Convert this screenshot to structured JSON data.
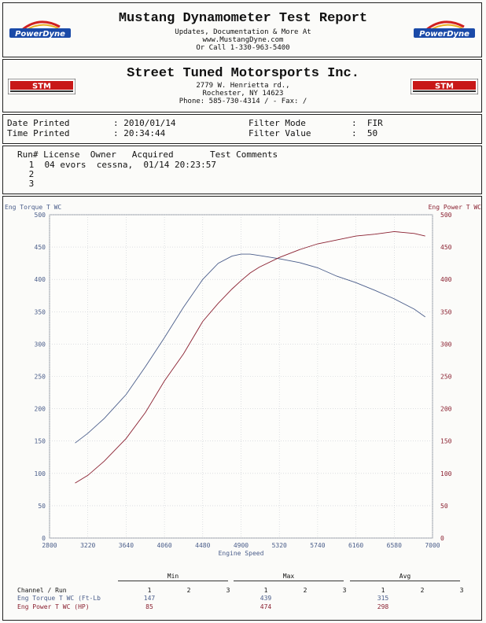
{
  "header": {
    "title": "Mustang Dynamometer Test Report",
    "line1": "Updates, Documentation & More At",
    "line2": "www.MustangDyne.com",
    "line3": "Or Call 1-330-963-5400",
    "logo_text": "PowerDyne"
  },
  "shop": {
    "name": "Street Tuned Motorsports Inc.",
    "address1": "2779 W. Henrietta rd.,",
    "address2": "Rochester, NY  14623",
    "contact": "Phone: 585-730-4314 /  - Fax:  /",
    "logo_text": "STM"
  },
  "print_info": {
    "date_label": "Date Printed",
    "date_value": ": 2010/01/14",
    "time_label": "Time Printed",
    "time_value": ":  20:34:44",
    "filter_mode_label": "Filter Mode",
    "filter_mode_value": ":  FIR",
    "filter_value_label": "Filter Value",
    "filter_value_value": ":  50"
  },
  "runs": {
    "header": "Run# License  Owner   Acquired       Test Comments",
    "rows": [
      " 1  04 evors  cessna,  01/14 20:23:57",
      " 2",
      " 3"
    ]
  },
  "chart_data": {
    "type": "line",
    "xlabel": "Engine Speed",
    "ylabel_left": "Eng Torque T WC",
    "ylabel_right": "Eng Power T WC",
    "xlim": [
      2800,
      7000
    ],
    "ylim": [
      0,
      500
    ],
    "x_ticks": [
      "2800",
      "3220",
      "3640",
      "4060",
      "4480",
      "4900",
      "5320",
      "5740",
      "6160",
      "6580",
      "7000"
    ],
    "y_ticks": [
      "0",
      "50",
      "100",
      "150",
      "200",
      "250",
      "300",
      "350",
      "400",
      "450",
      "500"
    ],
    "grid": true,
    "series": [
      {
        "name": "Eng Torque T WC",
        "axis": "left",
        "color": "#4a5d8a",
        "x": [
          3080,
          3220,
          3400,
          3640,
          3850,
          4060,
          4270,
          4480,
          4650,
          4800,
          4900,
          5000,
          5100,
          5320,
          5540,
          5740,
          5950,
          6160,
          6370,
          6580,
          6800,
          6920
        ],
        "y": [
          147,
          162,
          185,
          222,
          265,
          310,
          357,
          400,
          425,
          436,
          439,
          439,
          437,
          432,
          426,
          418,
          405,
          395,
          383,
          370,
          354,
          342
        ]
      },
      {
        "name": "Eng Power T WC",
        "axis": "right",
        "color": "#8a2030",
        "x": [
          3080,
          3220,
          3400,
          3640,
          3850,
          4060,
          4270,
          4480,
          4650,
          4800,
          4900,
          5000,
          5100,
          5320,
          5540,
          5740,
          5950,
          6160,
          6370,
          6580,
          6800,
          6920
        ],
        "y": [
          85,
          97,
          119,
          154,
          194,
          243,
          285,
          335,
          363,
          385,
          398,
          410,
          419,
          434,
          446,
          455,
          461,
          467,
          470,
          474,
          471,
          467
        ]
      }
    ]
  },
  "stats": {
    "groups": [
      "Min",
      "Max",
      "Avg"
    ],
    "header_label": "Channel / Run",
    "run_numbers": [
      "1",
      "2",
      "3"
    ],
    "rows": [
      {
        "label": "Eng Torque T WC (Ft-Lb",
        "color": "#4a5d8a",
        "min": "147",
        "max": "439",
        "avg": "315"
      },
      {
        "label": "Eng Power T WC (HP)",
        "color": "#8a2030",
        "min": "85",
        "max": "474",
        "avg": "298"
      }
    ]
  }
}
